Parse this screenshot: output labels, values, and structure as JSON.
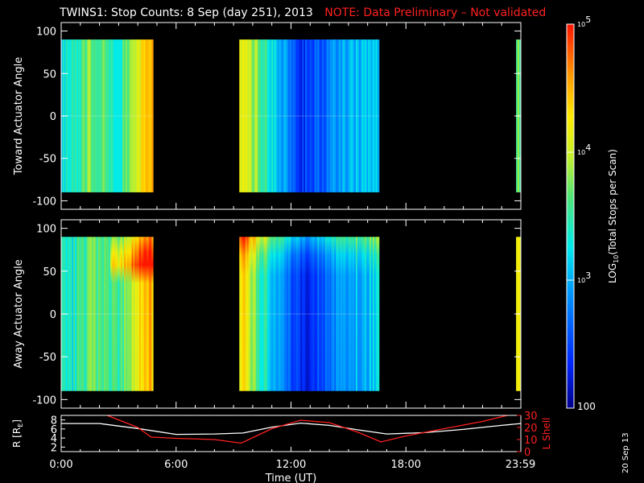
{
  "header": {
    "title": "TWINS1: Stop Counts:  8 Sep (day 251), 2013",
    "note": "NOTE: Data Preliminary – Not validated",
    "note_color": "#ff2020"
  },
  "date_stamp": "20 Sep 13",
  "chart_data": [
    {
      "type": "heatmap",
      "ylabel": "Toward Actuator Angle",
      "yticks": [
        -100,
        -50,
        0,
        50,
        100
      ],
      "ylim": [
        -110,
        110
      ],
      "y_data_range": [
        -90,
        90
      ],
      "xlim": [
        0,
        24
      ],
      "data_segments_hours": [
        [
          0.0,
          4.8
        ],
        [
          9.3,
          16.6
        ],
        [
          23.75,
          24.0
        ]
      ],
      "profile": "toward",
      "approx_log10_levels": [
        {
          "t": 0.5,
          "v": 3.3
        },
        {
          "t": 1.5,
          "v": 3.8
        },
        {
          "t": 3.0,
          "v": 3.4
        },
        {
          "t": 4.5,
          "v": 4.4
        },
        {
          "t": 9.5,
          "v": 4.2
        },
        {
          "t": 10.5,
          "v": 3.6
        },
        {
          "t": 12.5,
          "v": 2.4
        },
        {
          "t": 15.0,
          "v": 3.0
        },
        {
          "t": 23.9,
          "v": 3.7
        }
      ]
    },
    {
      "type": "heatmap",
      "ylabel": "Away Actuator Angle",
      "yticks": [
        -100,
        -50,
        0,
        50,
        100
      ],
      "ylim": [
        -110,
        110
      ],
      "y_data_range": [
        -90,
        90
      ],
      "xlim": [
        0,
        24
      ],
      "data_segments_hours": [
        [
          0.0,
          4.8
        ],
        [
          9.3,
          16.6
        ],
        [
          23.75,
          24.0
        ]
      ],
      "profile": "away",
      "approx_log10_levels": [
        {
          "t": 0.5,
          "v": 3.3
        },
        {
          "t": 1.5,
          "v": 3.7
        },
        {
          "t": 3.0,
          "v": 3.5
        },
        {
          "t": 4.5,
          "v": 4.5
        },
        {
          "t": 9.5,
          "v": 4.3
        },
        {
          "t": 10.5,
          "v": 3.5
        },
        {
          "t": 12.5,
          "v": 2.3
        },
        {
          "t": 15.0,
          "v": 3.0
        },
        {
          "t": 23.9,
          "v": 4.1
        }
      ]
    },
    {
      "type": "line",
      "ylabel": "R [R",
      "ylabel_sub": "E",
      "ylabel_end": "]",
      "ylim": [
        1,
        9
      ],
      "yticks": [
        2,
        4,
        6,
        8
      ],
      "xlim": [
        0,
        24
      ],
      "xlabel": "Time (UT)",
      "xticks": [
        {
          "t": 0,
          "label": "0:00"
        },
        {
          "t": 6,
          "label": "6:00"
        },
        {
          "t": 12,
          "label": "12:00"
        },
        {
          "t": 18,
          "label": "18:00"
        },
        {
          "t": 23.98,
          "label": "23:59"
        }
      ],
      "series": [
        {
          "color": "#ffffff",
          "axis": "left",
          "x": [
            0,
            2,
            4,
            6,
            8,
            9.5,
            11,
            12.5,
            14,
            15.5,
            17,
            19,
            21,
            23,
            24
          ],
          "y": [
            7.2,
            7.2,
            6.1,
            4.8,
            4.9,
            5.1,
            6.4,
            7.3,
            6.8,
            5.8,
            4.9,
            5.2,
            5.9,
            6.8,
            7.2
          ]
        },
        {
          "name": "L Shell",
          "color": "#ff2020",
          "axis": "right",
          "x": [
            2.4,
            4,
            4.7,
            6,
            8,
            9.4,
            11,
            12.5,
            14,
            15.5,
            16.7,
            18,
            20,
            22,
            23.3
          ],
          "y": [
            30,
            20,
            12,
            11,
            10,
            7,
            19,
            26,
            24,
            16,
            8,
            13,
            19,
            25,
            30
          ]
        }
      ],
      "right_axis": {
        "label": "L Shell",
        "ylim": [
          0,
          30
        ],
        "yticks": [
          0,
          10,
          20,
          30
        ],
        "color": "#ff2020"
      }
    }
  ],
  "colorbar": {
    "label_prefix": "LOG",
    "label_sub": "10",
    "label_rest": "(Total Stops per Scan)",
    "tick_100": "100",
    "tick_base": "10",
    "ticks": [
      {
        "value": 2,
        "exp": ""
      },
      {
        "value": 3,
        "exp": "3"
      },
      {
        "value": 4,
        "exp": "4"
      },
      {
        "value": 5,
        "exp": "5"
      }
    ],
    "range_log10": [
      2,
      5
    ]
  }
}
